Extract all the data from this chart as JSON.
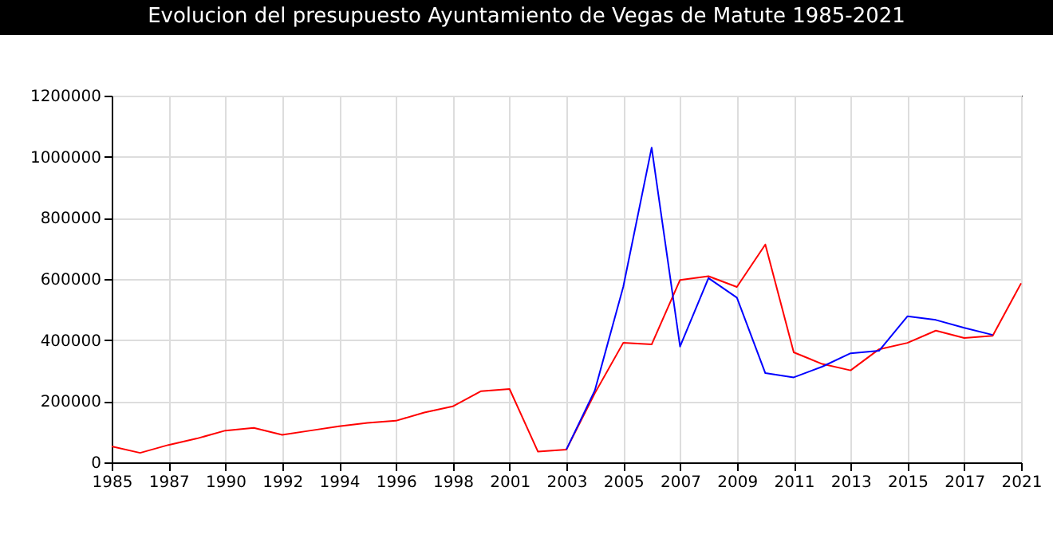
{
  "chart_data": {
    "type": "line",
    "title": "Evolucion del presupuesto Ayuntamiento de Vegas de Matute 1985-2021",
    "categories": [
      "1985",
      null,
      "1987",
      null,
      "1990",
      null,
      "1992",
      null,
      "1994",
      null,
      "1996",
      null,
      "1998",
      null,
      "2001",
      null,
      "2003",
      null,
      "2005",
      null,
      "2007",
      null,
      "2009",
      null,
      "2011",
      null,
      "2013",
      null,
      "2015",
      null,
      "2017",
      null,
      "2021"
    ],
    "series": [
      {
        "color": "#ff0000",
        "values": [
          52000,
          31000,
          57000,
          78000,
          104000,
          113000,
          90000,
          104000,
          118000,
          129000,
          136000,
          163000,
          183000,
          233000,
          240000,
          35000,
          42000,
          226000,
          391000,
          386000,
          597000,
          609000,
          574000,
          713000,
          360000,
          322000,
          301000,
          370000,
          391000,
          431000,
          407000,
          414000,
          586000
        ]
      },
      {
        "color": "#0000ff",
        "values": [
          null,
          null,
          null,
          null,
          null,
          null,
          null,
          null,
          null,
          null,
          null,
          null,
          null,
          null,
          null,
          null,
          42000,
          235000,
          574000,
          1030000,
          379000,
          603000,
          539000,
          292000,
          278000,
          313000,
          357000,
          365000,
          478000,
          466000,
          440000,
          417000,
          null
        ]
      }
    ],
    "ylim": [
      0,
      1200000
    ],
    "yticks": [
      0,
      200000,
      400000,
      600000,
      800000,
      1000000,
      1200000
    ],
    "grid": true,
    "legend": false,
    "marker": "none",
    "line_style": "solid"
  }
}
